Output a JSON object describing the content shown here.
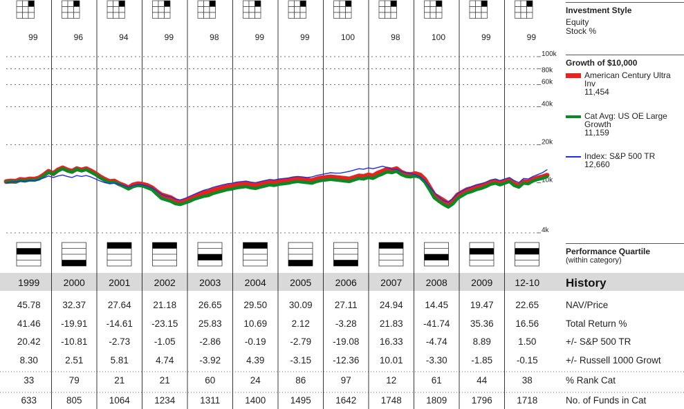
{
  "chart_data": {
    "type": "line",
    "style_box": {
      "title": "Investment Style",
      "subtitle_line1": "Equity",
      "subtitle_line2": "Stock %",
      "highlight_cell": "top-right",
      "stock_pct": [
        "99",
        "96",
        "94",
        "99",
        "98",
        "99",
        "99",
        "100",
        "98",
        "100",
        "99",
        "99"
      ]
    },
    "growth": {
      "title": "Growth of $10,000",
      "y_ticks": [
        "100k",
        "80k",
        "60k",
        "40k",
        "20k",
        "10k",
        "4k"
      ],
      "y_tick_values": [
        100000,
        80000,
        60000,
        40000,
        20000,
        10000,
        4000
      ],
      "y_scale": "log",
      "ylim": [
        4000,
        100000
      ],
      "x_start": 1999.0,
      "x_end": 2010.917,
      "series": [
        {
          "name": "American Century Ultra Inv",
          "end_value": "11,454",
          "color": "#e8231f",
          "values": [
            10200,
            10300,
            10250,
            10600,
            10500,
            10700,
            10650,
            10900,
            11500,
            12300,
            11800,
            12600,
            13100,
            12600,
            12300,
            12900,
            12600,
            12900,
            12400,
            11800,
            11100,
            10600,
            10200,
            10300,
            9800,
            9500,
            9100,
            9600,
            9800,
            9700,
            9500,
            9100,
            8500,
            8000,
            7800,
            7600,
            7200,
            7000,
            7200,
            7400,
            7700,
            8000,
            8300,
            8400,
            8700,
            8900,
            9100,
            9300,
            9400,
            9600,
            9700,
            9800,
            9600,
            9500,
            9700,
            9900,
            10100,
            10000,
            10200,
            10300,
            10400,
            10600,
            10700,
            10600,
            10500,
            10400,
            10700,
            10900,
            11000,
            11100,
            11000,
            10900,
            10800,
            10700,
            11000,
            11300,
            11200,
            11500,
            11300,
            11900,
            12300,
            12800,
            12600,
            12900,
            12100,
            11700,
            11600,
            11800,
            11500,
            10600,
            9200,
            8000,
            7600,
            7200,
            6800,
            7200,
            8000,
            8400,
            8800,
            9000,
            9300,
            9500,
            9700,
            10100,
            10300,
            9900,
            10200,
            10500,
            9800,
            9400,
            10200,
            10100,
            10600,
            10900,
            11100,
            11454
          ]
        },
        {
          "name": "Cat Avg: US OE Large Growth",
          "end_value": "11,159",
          "color": "#0a8a24",
          "values": [
            10100,
            10200,
            10150,
            10400,
            10300,
            10500,
            10450,
            10700,
            11300,
            12100,
            11700,
            12400,
            12900,
            12400,
            12100,
            12800,
            12400,
            12700,
            12100,
            11600,
            10900,
            10400,
            10000,
            10100,
            9700,
            9300,
            8900,
            9300,
            9500,
            9400,
            9100,
            8800,
            8100,
            7500,
            7300,
            7100,
            6800,
            6700,
            6900,
            7100,
            7400,
            7600,
            7800,
            7900,
            8200,
            8400,
            8600,
            8800,
            8900,
            9100,
            9200,
            9300,
            9100,
            9000,
            9200,
            9400,
            9600,
            9500,
            9700,
            9800,
            9900,
            10100,
            10200,
            10100,
            10000,
            9900,
            10200,
            10400,
            10500,
            10600,
            10500,
            10400,
            10300,
            10200,
            10500,
            10800,
            10700,
            11000,
            10800,
            11300,
            11700,
            12200,
            12000,
            12300,
            11600,
            11200,
            11100,
            11300,
            11000,
            10100,
            8800,
            7600,
            7100,
            6700,
            6400,
            6800,
            7500,
            7900,
            8300,
            8500,
            8800,
            9000,
            9300,
            9700,
            9900,
            9600,
            9900,
            10200,
            9500,
            9200,
            9900,
            9800,
            10300,
            10600,
            10800,
            11159
          ]
        },
        {
          "name": "Index: S&P 500 TR",
          "end_value": "12,660",
          "color": "#1f2fe0",
          "values": [
            10000,
            10100,
            10150,
            10300,
            10250,
            10400,
            10350,
            10600,
            10900,
            11300,
            11000,
            11300,
            11500,
            11200,
            11000,
            11400,
            11200,
            11400,
            11100,
            10700,
            10300,
            10000,
            9800,
            9900,
            9700,
            9500,
            9200,
            9500,
            9700,
            9600,
            9400,
            9100,
            8600,
            8100,
            7800,
            7700,
            7400,
            7300,
            7500,
            7800,
            8100,
            8400,
            8700,
            8900,
            9200,
            9400,
            9600,
            9800,
            9900,
            10100,
            10200,
            10300,
            10100,
            10000,
            10200,
            10400,
            10600,
            10500,
            10700,
            10800,
            10900,
            11100,
            11200,
            11100,
            11000,
            11100,
            11400,
            11600,
            11800,
            12000,
            11900,
            11900,
            12100,
            12300,
            12600,
            12900,
            12800,
            13100,
            12900,
            13200,
            13500,
            13200,
            12800,
            12800,
            12300,
            12000,
            11800,
            11600,
            11100,
            10400,
            9300,
            8400,
            7700,
            7200,
            7000,
            7500,
            8200,
            8600,
            9000,
            9300,
            9600,
            9800,
            10100,
            10500,
            10700,
            10400,
            10700,
            11000,
            10400,
            10000,
            10800,
            10700,
            11200,
            11600,
            12000,
            12660
          ]
        }
      ]
    },
    "quartile": {
      "title": "Performance Quartile",
      "subtitle": "(within category)",
      "values": [
        2,
        4,
        1,
        1,
        3,
        1,
        4,
        4,
        1,
        3,
        2,
        2
      ]
    },
    "history": {
      "title": "History",
      "years": [
        "1999",
        "2000",
        "2001",
        "2002",
        "2003",
        "2004",
        "2005",
        "2006",
        "2007",
        "2008",
        "2009",
        "12-10"
      ],
      "rows": [
        {
          "label": "NAV/Price",
          "values": [
            "45.78",
            "32.37",
            "27.64",
            "21.18",
            "26.65",
            "29.50",
            "30.09",
            "27.11",
            "24.94",
            "14.45",
            "19.47",
            "22.65"
          ]
        },
        {
          "label": "Total Return %",
          "values": [
            "41.46",
            "-19.91",
            "-14.61",
            "-23.15",
            "25.83",
            "10.69",
            "2.12",
            "-3.28",
            "21.83",
            "-41.74",
            "35.36",
            "16.56"
          ]
        },
        {
          "label": "+/- S&P 500 TR",
          "values": [
            "20.42",
            "-10.81",
            "-2.73",
            "-1.05",
            "-2.86",
            "-0.19",
            "-2.79",
            "-19.08",
            "16.33",
            "-4.74",
            "8.89",
            "1.50"
          ]
        },
        {
          "label": "+/- Russell 1000 Growt",
          "values": [
            "8.30",
            "2.51",
            "5.81",
            "4.74",
            "-3.92",
            "4.39",
            "-3.15",
            "-12.36",
            "10.01",
            "-3.30",
            "-1.85",
            "-0.15"
          ]
        },
        {
          "label": "% Rank Cat",
          "values": [
            "33",
            "79",
            "21",
            "21",
            "60",
            "24",
            "86",
            "97",
            "12",
            "61",
            "44",
            "38"
          ]
        },
        {
          "label": "No. of Funds in Cat",
          "values": [
            "633",
            "805",
            "1064",
            "1234",
            "1311",
            "1400",
            "1495",
            "1642",
            "1748",
            "1809",
            "1796",
            "1718"
          ]
        }
      ]
    }
  }
}
